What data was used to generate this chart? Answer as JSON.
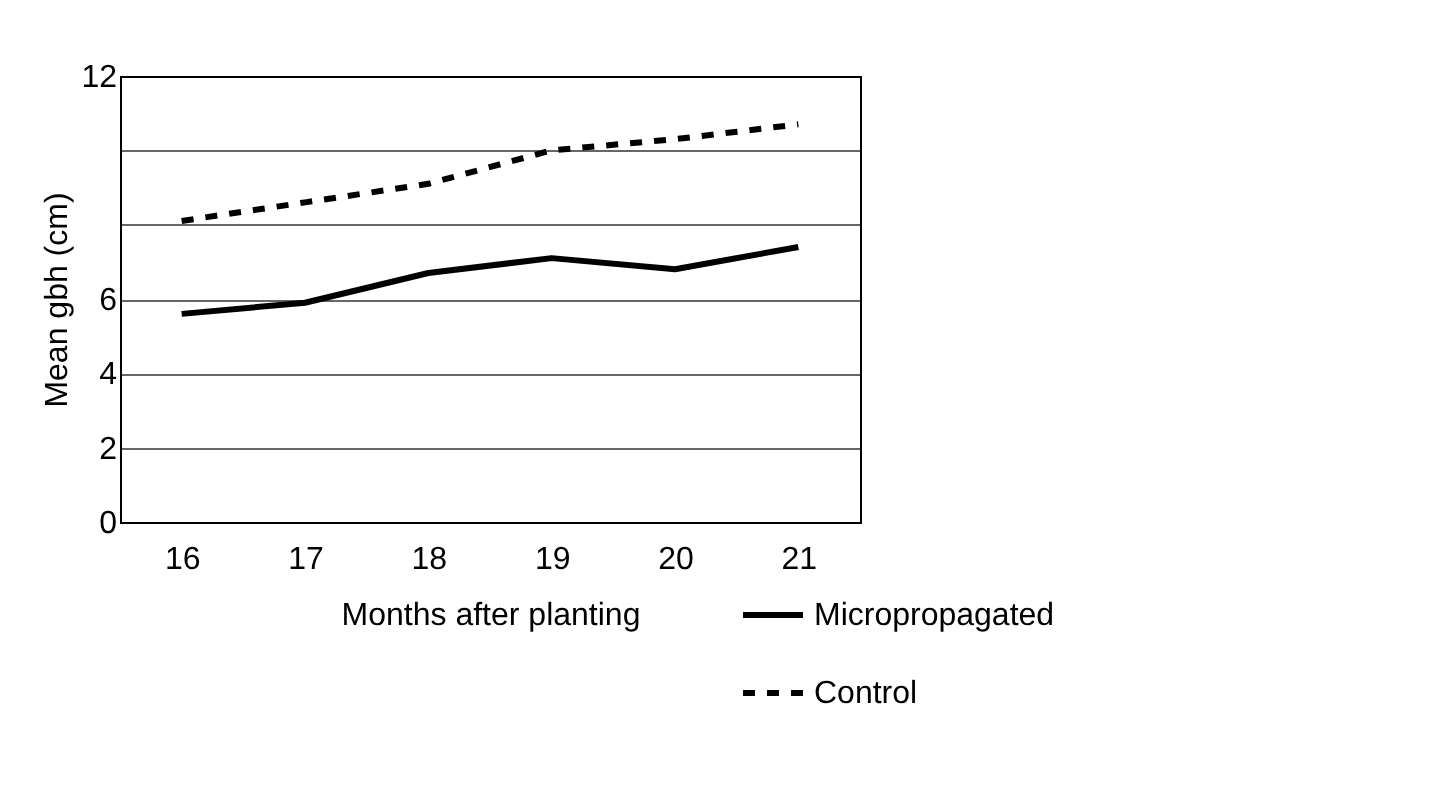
{
  "chart_data": {
    "type": "line",
    "xlabel": "Months after planting",
    "ylabel": "Mean gbh (cm)",
    "categories": [
      "16",
      "17",
      "18",
      "19",
      "20",
      "21"
    ],
    "series": [
      {
        "name": "Micropropagated",
        "color": "#000000",
        "line_style": "solid",
        "values": [
          5.6,
          5.9,
          6.7,
          7.1,
          6.8,
          7.4
        ]
      },
      {
        "name": "Control",
        "color": "#000000",
        "line_style": "dashed",
        "values": [
          8.1,
          8.6,
          9.1,
          10.0,
          10.3,
          10.7
        ]
      }
    ],
    "ylim": [
      0,
      12
    ],
    "yticks": [
      0,
      2,
      4,
      6,
      {
        "value": 8,
        "label": null
      },
      {
        "value": 10,
        "label": null
      },
      12
    ],
    "grid": "y",
    "legend": "bottom right",
    "marker": "none"
  }
}
